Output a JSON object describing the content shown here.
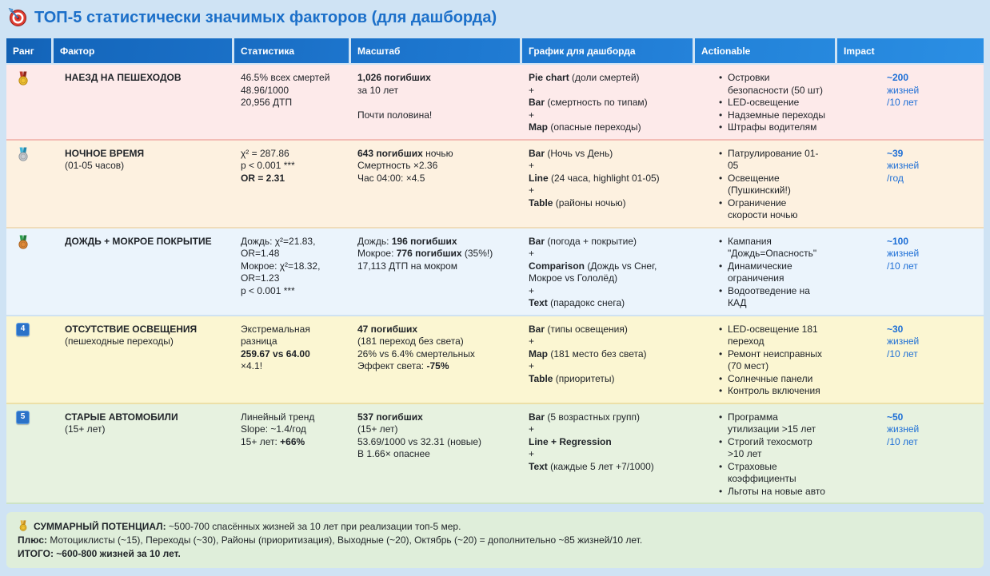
{
  "title": {
    "icon": "target-icon",
    "text": "ТОП-5 статистически значимых факторов (для дашборда)"
  },
  "colors": {
    "page_bg": "#cfe3f4",
    "header_blue": "#1a70c7",
    "title_blue": "#1b6fc9",
    "impact_blue": "#1e6fd6",
    "footer_green": "#dfeeda"
  },
  "table": {
    "columns": [
      {
        "key": "rank",
        "label": "Ранг"
      },
      {
        "key": "factor",
        "label": "Фактор"
      },
      {
        "key": "stats",
        "label": "Статистика"
      },
      {
        "key": "scale",
        "label": "Масштаб"
      },
      {
        "key": "chart",
        "label": "График для дашборда"
      },
      {
        "key": "actionable",
        "label": "Actionable"
      },
      {
        "key": "impact",
        "label": "Impact"
      }
    ],
    "rows": [
      {
        "rank": {
          "type": "medal",
          "icon": "gold-medal-icon",
          "variant": "gold"
        },
        "factor": {
          "name": "НАЕЗД НА ПЕШЕХОДОВ",
          "sub": ""
        },
        "stats": [
          [
            {
              "t": "46.5% всех смертей"
            }
          ],
          [
            {
              "t": "48.96/1000"
            }
          ],
          [
            {
              "t": "20,956 ДТП"
            }
          ]
        ],
        "scale": [
          [
            {
              "t": "1,026 погибших",
              "b": true
            }
          ],
          [
            {
              "t": "за 10 лет"
            }
          ],
          [
            {
              "t": ""
            }
          ],
          [
            {
              "t": "Почти половина!"
            }
          ]
        ],
        "chart": [
          [
            {
              "t": "Pie chart",
              "b": true
            },
            {
              "t": " (доли смертей)"
            }
          ],
          [
            {
              "t": "+"
            }
          ],
          [
            {
              "t": "Bar",
              "b": true
            },
            {
              "t": " (смертность по типам)"
            }
          ],
          [
            {
              "t": "+"
            }
          ],
          [
            {
              "t": "Map",
              "b": true
            },
            {
              "t": " (опасные переходы)"
            }
          ]
        ],
        "actionable": [
          "Островки безопасности (50 шт)",
          "LED-освещение",
          "Надземные переходы",
          "Штрафы водителям"
        ],
        "impact": {
          "value": "~200",
          "unit": "жизней",
          "period": "/10 лет"
        },
        "bg": "#fdeaea",
        "divider": "#f3bcb6"
      },
      {
        "rank": {
          "type": "medal",
          "icon": "silver-medal-icon",
          "variant": "silver"
        },
        "factor": {
          "name": "НОЧНОЕ ВРЕМЯ",
          "sub": "(01-05 часов)"
        },
        "stats": [
          [
            {
              "t": "χ² = 287.86"
            }
          ],
          [
            {
              "t": "p < 0.001 ***"
            }
          ],
          [
            {
              "t": "OR = 2.31",
              "b": true
            }
          ]
        ],
        "scale": [
          [
            {
              "t": "643 погибших",
              "b": true
            },
            {
              "t": " ночью"
            }
          ],
          [
            {
              "t": "Смертность ×2.36"
            }
          ],
          [
            {
              "t": "Час 04:00: ×4.5"
            }
          ]
        ],
        "chart": [
          [
            {
              "t": "Bar",
              "b": true
            },
            {
              "t": " (Ночь vs День)"
            }
          ],
          [
            {
              "t": "+"
            }
          ],
          [
            {
              "t": "Line",
              "b": true
            },
            {
              "t": " (24 часа, highlight 01-05)"
            }
          ],
          [
            {
              "t": "+"
            }
          ],
          [
            {
              "t": "Table",
              "b": true
            },
            {
              "t": " (районы ночью)"
            }
          ]
        ],
        "actionable": [
          "Патрулирование 01-05",
          "Освещение (Пушкинский!)",
          "Ограничение скорости ночью"
        ],
        "impact": {
          "value": "~39",
          "unit": "жизней",
          "period": "/год"
        },
        "bg": "#fdf1e0",
        "divider": "#f0dcba"
      },
      {
        "rank": {
          "type": "medal",
          "icon": "bronze-medal-icon",
          "variant": "bronze"
        },
        "factor": {
          "name": "ДОЖДЬ + МОКРОЕ ПОКРЫТИЕ",
          "sub": ""
        },
        "stats": [
          [
            {
              "t": "Дождь: χ²=21.83, OR=1.48"
            }
          ],
          [
            {
              "t": "Мокрое: χ²=18.32, OR=1.23"
            }
          ],
          [
            {
              "t": "p < 0.001 ***"
            }
          ]
        ],
        "scale": [
          [
            {
              "t": "Дождь: "
            },
            {
              "t": "196 погибших",
              "b": true
            }
          ],
          [
            {
              "t": "Мокрое: "
            },
            {
              "t": "776 погибших",
              "b": true
            },
            {
              "t": " (35%!)"
            }
          ],
          [
            {
              "t": "17,113 ДТП на мокром"
            }
          ]
        ],
        "chart": [
          [
            {
              "t": "Bar",
              "b": true
            },
            {
              "t": " (погода + покрытие)"
            }
          ],
          [
            {
              "t": "+"
            }
          ],
          [
            {
              "t": "Comparison",
              "b": true
            },
            {
              "t": " (Дождь vs Снег, Мокрое vs Гололёд)"
            }
          ],
          [
            {
              "t": "+"
            }
          ],
          [
            {
              "t": "Text",
              "b": true
            },
            {
              "t": " (парадокс снега)"
            }
          ]
        ],
        "actionable": [
          "Кампания \"Дождь=Опасность\"",
          "Динамические ограничения",
          "Водоотведение на КАД"
        ],
        "impact": {
          "value": "~100",
          "unit": "жизней",
          "period": "/10 лет"
        },
        "bg": "#ebf4fc",
        "divider": "#cfe2f2"
      },
      {
        "rank": {
          "type": "keycap",
          "icon": "keycap-4-icon",
          "label": "4"
        },
        "factor": {
          "name": "ОТСУТСТВИЕ ОСВЕЩЕНИЯ",
          "sub": "(пешеходные переходы)"
        },
        "stats": [
          [
            {
              "t": "Экстремальная разница"
            }
          ],
          [
            {
              "t": "259.67 vs 64.00",
              "b": true
            }
          ],
          [
            {
              "t": "×4.1!"
            }
          ]
        ],
        "scale": [
          [
            {
              "t": "47 погибших",
              "b": true
            }
          ],
          [
            {
              "t": "(181 переход без света)"
            }
          ],
          [
            {
              "t": "26% vs 6.4% смертельных"
            }
          ],
          [
            {
              "t": "Эффект света: "
            },
            {
              "t": "-75%",
              "b": true
            }
          ]
        ],
        "chart": [
          [
            {
              "t": "Bar",
              "b": true
            },
            {
              "t": " (типы освещения)"
            }
          ],
          [
            {
              "t": "+"
            }
          ],
          [
            {
              "t": "Map",
              "b": true
            },
            {
              "t": " (181 место без света)"
            }
          ],
          [
            {
              "t": "+"
            }
          ],
          [
            {
              "t": "Table",
              "b": true
            },
            {
              "t": " (приоритеты)"
            }
          ]
        ],
        "actionable": [
          "LED-освещение 181 переход",
          "Ремонт неисправных (70 мест)",
          "Солнечные панели",
          "Контроль включения"
        ],
        "impact": {
          "value": "~30",
          "unit": "жизней",
          "period": "/10 лет"
        },
        "bg": "#fbf6d2",
        "divider": "#ece0a8"
      },
      {
        "rank": {
          "type": "keycap",
          "icon": "keycap-5-icon",
          "label": "5"
        },
        "factor": {
          "name": "СТАРЫЕ АВТОМОБИЛИ",
          "sub": "(15+ лет)"
        },
        "stats": [
          [
            {
              "t": "Линейный тренд"
            }
          ],
          [
            {
              "t": "Slope: ~1.4/год"
            }
          ],
          [
            {
              "t": "15+ лет: "
            },
            {
              "t": "+66%",
              "b": true
            }
          ]
        ],
        "scale": [
          [
            {
              "t": "537 погибших",
              "b": true
            }
          ],
          [
            {
              "t": "(15+ лет)"
            }
          ],
          [
            {
              "t": "53.69/1000 vs 32.31 (новые)"
            }
          ],
          [
            {
              "t": "В 1.66× опаснее"
            }
          ]
        ],
        "chart": [
          [
            {
              "t": "Bar",
              "b": true
            },
            {
              "t": " (5 возрастных групп)"
            }
          ],
          [
            {
              "t": "+"
            }
          ],
          [
            {
              "t": "Line + Regression",
              "b": true
            }
          ],
          [
            {
              "t": "+"
            }
          ],
          [
            {
              "t": "Text",
              "b": true
            },
            {
              "t": " (каждые 5 лет +7/1000)"
            }
          ]
        ],
        "actionable": [
          "Программа утилизации >15 лет",
          "Строгий техосмотр >10 лет",
          "Страховые коэффициенты",
          "Льготы на новые авто"
        ],
        "impact": {
          "value": "~50",
          "unit": "жизней",
          "period": "/10 лет"
        },
        "bg": "#e7f2e0",
        "divider": "#cde3c5"
      }
    ]
  },
  "footer": {
    "icon": "gold-medal-icon",
    "line1_bold": "СУММАРНЫЙ ПОТЕНЦИАЛ:",
    "line1_rest": " ~500-700 спасённых жизней за 10 лет при реализации топ-5 мер.",
    "line2_bold": "Плюс:",
    "line2_rest": " Мотоциклисты (~15), Переходы (~30), Районы (приоритизация), Выходные (~20), Октябрь (~20) = дополнительно ~85 жизней/10 лет.",
    "line3": "ИТОГО: ~600-800 жизней за 10 лет."
  }
}
